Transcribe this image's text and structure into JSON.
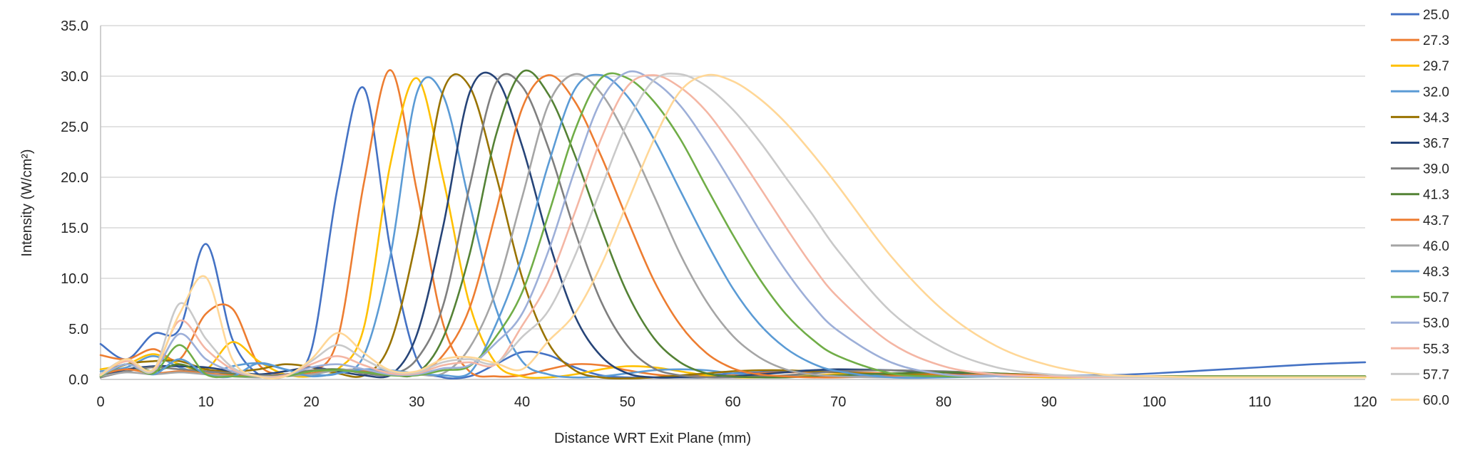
{
  "chart_data": {
    "type": "line",
    "title": "",
    "xlabel": "Distance WRT Exit Plane (mm)",
    "ylabel": "Intensity (W/cm²)",
    "xlim": [
      0,
      120
    ],
    "ylim": [
      0,
      35
    ],
    "x_ticks": [
      "0",
      "10",
      "20",
      "30",
      "40",
      "50",
      "60",
      "70",
      "80",
      "90",
      "100",
      "110",
      "120"
    ],
    "x_tick_values": [
      0,
      10,
      20,
      30,
      40,
      50,
      60,
      70,
      80,
      90,
      100,
      110,
      120
    ],
    "y_ticks": [
      "0.0",
      "5.0",
      "10.0",
      "15.0",
      "20.0",
      "25.0",
      "30.0",
      "35.0"
    ],
    "y_tick_values": [
      0,
      5,
      10,
      15,
      20,
      25,
      30,
      35
    ],
    "grid": "horizontal",
    "legend_position": "right",
    "x": [
      0,
      2.5,
      5,
      7.5,
      10,
      12.5,
      15,
      17.5,
      20,
      22.5,
      25,
      27.5,
      30,
      32.5,
      35,
      37.5,
      40,
      42.5,
      45,
      47.5,
      50,
      52.5,
      55,
      57.5,
      60,
      62.5,
      65,
      67.5,
      70,
      75,
      80,
      85,
      90,
      95,
      100,
      105,
      110,
      115,
      120
    ],
    "series": [
      {
        "name": "25.0",
        "color": "#4472C4",
        "values": [
          3.5,
          2.0,
          4.5,
          5.0,
          13.4,
          4.0,
          0.5,
          0.3,
          2.9,
          19.0,
          28.8,
          12.9,
          2.0,
          0.2,
          0.3,
          1.5,
          2.7,
          2.4,
          1.2,
          0.4,
          0.2,
          0.2,
          0.3,
          0.4,
          0.6,
          0.7,
          0.8,
          0.9,
          0.9,
          0.9,
          0.7,
          0.5,
          0.4,
          0.4,
          0.6,
          0.9,
          1.2,
          1.5,
          1.7
        ]
      },
      {
        "name": "27.3",
        "color": "#ED7D31",
        "values": [
          2.4,
          2.0,
          3.0,
          2.0,
          6.5,
          7.0,
          1.5,
          0.5,
          0.8,
          4.0,
          19.5,
          30.6,
          18.7,
          5.5,
          0.8,
          0.3,
          0.4,
          1.0,
          1.5,
          1.4,
          0.9,
          0.5,
          0.3,
          0.3,
          0.4,
          0.6,
          0.7,
          0.7,
          0.7,
          0.6,
          0.5,
          0.4,
          0.3,
          0.3,
          0.3,
          0.3,
          0.3,
          0.3,
          0.3
        ]
      },
      {
        "name": "29.7",
        "color": "#FFC000",
        "values": [
          1.0,
          1.5,
          2.5,
          1.5,
          1.0,
          3.7,
          1.8,
          0.5,
          0.3,
          1.0,
          5.2,
          21.3,
          29.8,
          19.9,
          7.5,
          1.6,
          0.3,
          0.2,
          0.5,
          1.0,
          1.3,
          1.2,
          0.8,
          0.4,
          0.2,
          0.2,
          0.3,
          0.4,
          0.5,
          0.5,
          0.4,
          0.3,
          0.2,
          0.2,
          0.2,
          0.2,
          0.2,
          0.2,
          0.2
        ]
      },
      {
        "name": "32.0",
        "color": "#5B9BD5",
        "values": [
          0.8,
          1.2,
          2.3,
          1.2,
          0.6,
          1.3,
          1.6,
          1.0,
          0.5,
          0.6,
          2.4,
          12.2,
          28.3,
          28.1,
          17.5,
          7.1,
          1.8,
          0.5,
          0.2,
          0.3,
          0.6,
          0.9,
          1.0,
          0.9,
          0.6,
          0.4,
          0.3,
          0.3,
          0.4,
          0.4,
          0.4,
          0.3,
          0.3,
          0.2,
          0.2,
          0.2,
          0.2,
          0.2,
          0.2
        ]
      },
      {
        "name": "34.3",
        "color": "#997300",
        "values": [
          0.5,
          1.5,
          1.8,
          1.8,
          1.0,
          0.8,
          1.0,
          1.5,
          1.2,
          0.6,
          0.4,
          3.6,
          14.1,
          28.5,
          29.0,
          20.3,
          10.1,
          3.6,
          0.9,
          0.2,
          0.1,
          0.2,
          0.4,
          0.6,
          0.8,
          0.9,
          0.9,
          0.8,
          0.7,
          0.5,
          0.4,
          0.3,
          0.3,
          0.2,
          0.2,
          0.2,
          0.2,
          0.2,
          0.2
        ]
      },
      {
        "name": "36.7",
        "color": "#264478",
        "values": [
          0.3,
          1.0,
          1.3,
          1.3,
          1.2,
          0.8,
          0.5,
          0.8,
          1.2,
          0.8,
          0.4,
          0.4,
          4.4,
          15.1,
          28.3,
          29.8,
          23.1,
          13.8,
          6.3,
          2.3,
          0.6,
          0.2,
          0.2,
          0.2,
          0.3,
          0.5,
          0.7,
          0.9,
          1.0,
          0.9,
          0.7,
          0.5,
          0.4,
          0.3,
          0.3,
          0.3,
          0.3,
          0.3,
          0.3
        ]
      },
      {
        "name": "39.0",
        "color": "#7F7F7F",
        "values": [
          0.2,
          0.8,
          1.2,
          1.0,
          0.8,
          0.6,
          0.4,
          0.5,
          0.9,
          1.0,
          0.6,
          0.5,
          2.0,
          7.3,
          19.0,
          29.3,
          29.0,
          22.9,
          14.7,
          7.7,
          3.3,
          1.1,
          0.4,
          0.2,
          0.2,
          0.3,
          0.4,
          0.6,
          0.8,
          0.9,
          0.8,
          0.6,
          0.4,
          0.3,
          0.3,
          0.3,
          0.3,
          0.3,
          0.3
        ]
      },
      {
        "name": "41.3",
        "color": "#548235",
        "values": [
          0.5,
          1.5,
          0.8,
          1.5,
          0.6,
          0.5,
          0.3,
          0.4,
          0.8,
          1.0,
          0.8,
          0.5,
          0.6,
          4.1,
          12.3,
          24.1,
          30.4,
          28.2,
          22.2,
          15.0,
          8.5,
          4.1,
          1.7,
          0.6,
          0.3,
          0.2,
          0.2,
          0.3,
          0.4,
          0.6,
          0.7,
          0.6,
          0.4,
          0.3,
          0.3,
          0.3,
          0.3,
          0.3,
          0.3
        ]
      },
      {
        "name": "43.7",
        "color": "#ED7D31",
        "values": [
          0.5,
          1.0,
          0.6,
          0.8,
          0.6,
          0.4,
          0.3,
          0.3,
          0.6,
          0.9,
          0.9,
          0.6,
          0.5,
          2.4,
          7.0,
          16.5,
          26.8,
          30.1,
          27.5,
          22.1,
          15.8,
          9.8,
          5.4,
          2.6,
          1.1,
          0.5,
          0.3,
          0.2,
          0.2,
          0.3,
          0.4,
          0.5,
          0.4,
          0.3,
          0.3,
          0.3,
          0.3,
          0.3,
          0.3
        ]
      },
      {
        "name": "46.0",
        "color": "#A5A5A5",
        "values": [
          0.3,
          0.7,
          0.5,
          0.7,
          0.5,
          0.3,
          0.2,
          0.3,
          0.5,
          0.9,
          1.0,
          0.8,
          0.5,
          0.6,
          3.1,
          8.7,
          18.0,
          27.2,
          30.2,
          28.3,
          23.8,
          18.2,
          12.4,
          7.7,
          4.3,
          2.2,
          1.0,
          0.5,
          0.3,
          0.2,
          0.3,
          0.4,
          0.3,
          0.3,
          0.2,
          0.2,
          0.2,
          0.2,
          0.2
        ]
      },
      {
        "name": "48.3",
        "color": "#5B9BD5",
        "values": [
          0.4,
          1.5,
          0.5,
          2.0,
          0.5,
          0.3,
          1.6,
          1.0,
          0.3,
          0.6,
          1.0,
          0.9,
          0.6,
          0.4,
          0.6,
          5.4,
          12.2,
          21.3,
          28.7,
          30.1,
          28.0,
          23.8,
          18.7,
          13.6,
          9.0,
          5.5,
          3.1,
          1.6,
          0.8,
          0.2,
          0.2,
          0.3,
          0.3,
          0.2,
          0.2,
          0.2,
          0.2,
          0.2,
          0.2
        ]
      },
      {
        "name": "50.7",
        "color": "#70AD47",
        "values": [
          0.3,
          1.5,
          0.6,
          3.4,
          0.5,
          0.3,
          0.3,
          0.3,
          0.8,
          0.9,
          0.7,
          0.4,
          0.4,
          0.9,
          1.3,
          4.2,
          8.6,
          16.3,
          24.6,
          29.8,
          29.8,
          27.5,
          23.8,
          19.0,
          14.3,
          10.0,
          6.5,
          4.0,
          2.3,
          0.6,
          0.3,
          0.3,
          0.3,
          0.3,
          0.3,
          0.3,
          0.3,
          0.3,
          0.3
        ]
      },
      {
        "name": "53.0",
        "color": "#9DAFD8",
        "values": [
          0.4,
          1.5,
          0.8,
          4.5,
          2.0,
          0.8,
          0.3,
          0.4,
          1.2,
          1.5,
          1.0,
          0.5,
          0.5,
          1.1,
          1.4,
          3.6,
          6.5,
          12.7,
          20.7,
          27.6,
          30.4,
          29.5,
          27.1,
          23.4,
          19.2,
          14.8,
          10.8,
          7.4,
          4.8,
          1.7,
          0.5,
          0.3,
          0.3,
          0.2,
          0.2,
          0.2,
          0.2,
          0.2,
          0.2
        ]
      },
      {
        "name": "55.3",
        "color": "#F4B6A4",
        "values": [
          0.5,
          1.8,
          0.8,
          5.8,
          3.0,
          1.0,
          0.3,
          0.4,
          1.5,
          2.3,
          1.4,
          0.6,
          0.6,
          1.4,
          1.7,
          1.5,
          5.3,
          9.7,
          16.5,
          23.8,
          29.0,
          30.1,
          28.9,
          26.5,
          23.0,
          19.1,
          15.1,
          11.3,
          8.1,
          3.6,
          1.3,
          0.5,
          0.3,
          0.2,
          0.2,
          0.2,
          0.2,
          0.2,
          0.2
        ]
      },
      {
        "name": "57.7",
        "color": "#C9C9C9",
        "values": [
          0.5,
          2.0,
          0.9,
          7.5,
          4.0,
          1.2,
          0.3,
          0.3,
          1.8,
          3.4,
          2.0,
          0.8,
          0.7,
          1.7,
          2.0,
          1.6,
          4.2,
          6.8,
          12.2,
          18.9,
          25.4,
          29.6,
          30.2,
          29.0,
          26.7,
          23.6,
          20.0,
          16.4,
          12.7,
          6.7,
          3.1,
          1.2,
          0.5,
          0.3,
          0.2,
          0.2,
          0.2,
          0.2,
          0.2
        ]
      },
      {
        "name": "60.0",
        "color": "#FFD797",
        "values": [
          0.4,
          2.0,
          1.0,
          6.5,
          10.1,
          2.0,
          0.3,
          0.3,
          2.0,
          4.6,
          2.6,
          0.9,
          0.8,
          2.0,
          2.2,
          1.6,
          1.0,
          3.8,
          6.5,
          11.3,
          17.5,
          23.7,
          28.5,
          30.1,
          29.5,
          27.8,
          25.4,
          22.4,
          19.1,
          12.2,
          6.8,
          3.3,
          1.4,
          0.5,
          0.3,
          0.2,
          0.2,
          0.2,
          0.2
        ]
      }
    ]
  }
}
